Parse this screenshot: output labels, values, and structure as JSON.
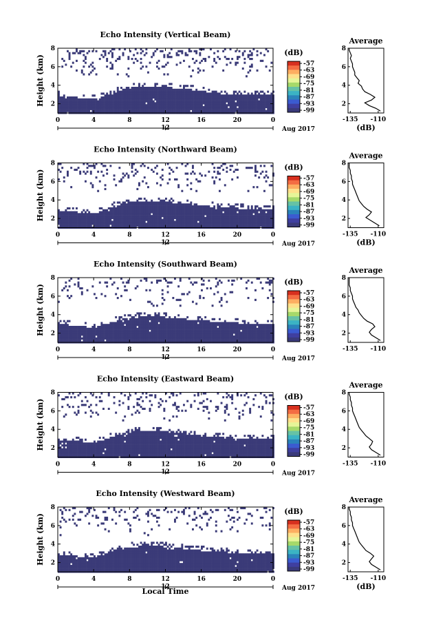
{
  "page": {
    "background": "#ffffff",
    "xlabel": "Local Time",
    "date_label": "Aug 2017",
    "marker_label": "12"
  },
  "colorbar": {
    "title": "(dB)",
    "labels": [
      "-57",
      "-63",
      "-69",
      "-75",
      "-81",
      "-87",
      "-93",
      "-99"
    ],
    "colors": [
      "#d7301f",
      "#f46d43",
      "#fdae61",
      "#fee08b",
      "#e6f598",
      "#a6d96a",
      "#66c2a5",
      "#3bb3c4",
      "#2b83ba",
      "#3b5bd0",
      "#3f3fa0",
      "#3a3a7a"
    ],
    "dominant_color": "#3b3b78"
  },
  "chart_data": [
    {
      "type": "heatmap",
      "title": "Echo Intensity (Vertical Beam)",
      "ylabel": "Height (km)",
      "xticks": [
        "0",
        "4",
        "8",
        "12",
        "16",
        "20",
        "0"
      ],
      "yticks": [
        "2",
        "4",
        "6",
        "8"
      ],
      "xlim": [
        0,
        24
      ],
      "ylim": [
        1,
        8
      ],
      "layer_top_km": [
        [
          0,
          3.0
        ],
        [
          2,
          2.8
        ],
        [
          4,
          2.6
        ],
        [
          6,
          3.2
        ],
        [
          7,
          3.6
        ],
        [
          9,
          4.0
        ],
        [
          12,
          3.9
        ],
        [
          15,
          3.6
        ],
        [
          18,
          3.2
        ],
        [
          21,
          3.0
        ],
        [
          24,
          3.1
        ]
      ],
      "noise_density": 0.2,
      "average": {
        "title": "Average",
        "xlabel": "(dB)",
        "xticks": [
          "-135",
          "-110"
        ],
        "yticks": [
          "2",
          "4",
          "6",
          "8"
        ],
        "xlim": [
          -137,
          -105
        ],
        "height_km": [
          1.2,
          1.5,
          1.8,
          2.1,
          2.4,
          2.7,
          3.0,
          3.3,
          3.6,
          3.9,
          4.2,
          4.5,
          4.8,
          5.1,
          5.4,
          5.7,
          6.0,
          6.3,
          6.6,
          6.9,
          7.2,
          7.5,
          7.8,
          8.0
        ],
        "db": [
          -108,
          -112,
          -118,
          -122,
          -116,
          -113,
          -117,
          -122,
          -124,
          -125,
          -128,
          -127,
          -129,
          -131,
          -131,
          -132,
          -133,
          -133,
          -134,
          -135,
          -134,
          -135,
          -136,
          -136
        ]
      }
    },
    {
      "type": "heatmap",
      "title": "Echo Intensity (Northward Beam)",
      "ylabel": "Height (km)",
      "xticks": [
        "0",
        "4",
        "8",
        "12",
        "16",
        "20",
        "0"
      ],
      "yticks": [
        "2",
        "4",
        "6",
        "8"
      ],
      "xlim": [
        0,
        24
      ],
      "ylim": [
        1,
        8
      ],
      "layer_top_km": [
        [
          0,
          3.0
        ],
        [
          2,
          2.8
        ],
        [
          4,
          2.6
        ],
        [
          6,
          3.4
        ],
        [
          8,
          3.9
        ],
        [
          11,
          4.0
        ],
        [
          14,
          3.7
        ],
        [
          17,
          3.4
        ],
        [
          20,
          3.2
        ],
        [
          24,
          3.1
        ]
      ],
      "noise_density": 0.16,
      "average": {
        "title": "Average",
        "xlabel": "(dB)",
        "xticks": [
          "-135",
          "-110"
        ],
        "yticks": [
          "2",
          "4",
          "6",
          "8"
        ],
        "xlim": [
          -137,
          -105
        ],
        "height_km": [
          1.2,
          1.5,
          1.8,
          2.1,
          2.4,
          2.7,
          3.0,
          3.3,
          3.6,
          3.9,
          4.2,
          4.5,
          4.8,
          5.1,
          5.4,
          5.7,
          6.0,
          6.3,
          6.6,
          6.9,
          7.2,
          7.5,
          7.8,
          8.0
        ],
        "db": [
          -109,
          -113,
          -117,
          -121,
          -118,
          -116,
          -120,
          -123,
          -125,
          -127,
          -128,
          -129,
          -130,
          -131,
          -132,
          -133,
          -133,
          -134,
          -134,
          -135,
          -135,
          -136,
          -136,
          -136
        ]
      }
    },
    {
      "type": "heatmap",
      "title": "Echo Intensity (Southward Beam)",
      "ylabel": "Height (km)",
      "xticks": [
        "0",
        "4",
        "8",
        "12",
        "16",
        "20",
        "0"
      ],
      "yticks": [
        "2",
        "4",
        "6",
        "8"
      ],
      "xlim": [
        0,
        24
      ],
      "ylim": [
        1,
        8
      ],
      "layer_top_km": [
        [
          0,
          3.1
        ],
        [
          2,
          2.9
        ],
        [
          4,
          2.7
        ],
        [
          6,
          3.3
        ],
        [
          8,
          3.8
        ],
        [
          11,
          3.9
        ],
        [
          14,
          3.6
        ],
        [
          17,
          3.4
        ],
        [
          20,
          3.2
        ],
        [
          24,
          3.0
        ]
      ],
      "noise_density": 0.15,
      "average": {
        "title": "Average",
        "xlabel": "",
        "xticks": [
          "-135",
          "-110"
        ],
        "yticks": [
          "2",
          "4",
          "6",
          "8"
        ],
        "xlim": [
          -137,
          -105
        ],
        "height_km": [
          1.2,
          1.5,
          1.8,
          2.1,
          2.4,
          2.7,
          3.0,
          3.3,
          3.6,
          3.9,
          4.2,
          4.5,
          4.8,
          5.1,
          5.4,
          5.7,
          6.0,
          6.3,
          6.6,
          6.9,
          7.2,
          7.5,
          7.8,
          8.0
        ],
        "db": [
          -108,
          -112,
          -116,
          -118,
          -116,
          -113,
          -115,
          -120,
          -123,
          -125,
          -127,
          -128,
          -130,
          -131,
          -132,
          -133,
          -133,
          -134,
          -135,
          -135,
          -136,
          -136,
          -136,
          -136
        ]
      }
    },
    {
      "type": "heatmap",
      "title": "Echo Intensity (Eastward Beam)",
      "ylabel": "Height (km)",
      "xticks": [
        "0",
        "4",
        "8",
        "12",
        "16",
        "20",
        "0"
      ],
      "yticks": [
        "2",
        "4",
        "6",
        "8"
      ],
      "xlim": [
        0,
        24
      ],
      "ylim": [
        1,
        8
      ],
      "layer_top_km": [
        [
          0,
          3.0
        ],
        [
          2,
          2.8
        ],
        [
          4,
          2.6
        ],
        [
          6,
          3.3
        ],
        [
          8,
          3.9
        ],
        [
          11,
          4.0
        ],
        [
          14,
          3.6
        ],
        [
          17,
          3.3
        ],
        [
          20,
          3.1
        ],
        [
          24,
          3.0
        ]
      ],
      "noise_density": 0.18,
      "average": {
        "title": "Average",
        "xlabel": "",
        "xticks": [
          "-135",
          "-110"
        ],
        "yticks": [
          "2",
          "4",
          "6",
          "8"
        ],
        "xlim": [
          -137,
          -105
        ],
        "height_km": [
          1.2,
          1.5,
          1.8,
          2.1,
          2.4,
          2.7,
          3.0,
          3.3,
          3.6,
          3.9,
          4.2,
          4.5,
          4.8,
          5.1,
          5.4,
          5.7,
          6.0,
          6.3,
          6.6,
          6.9,
          7.2,
          7.5,
          7.8,
          8.0
        ],
        "db": [
          -108,
          -112,
          -116,
          -118,
          -116,
          -115,
          -118,
          -121,
          -123,
          -125,
          -127,
          -128,
          -129,
          -130,
          -131,
          -132,
          -133,
          -133,
          -134,
          -134,
          -135,
          -135,
          -136,
          -136
        ]
      }
    },
    {
      "type": "heatmap",
      "title": "Echo Intensity (Westward Beam)",
      "ylabel": "Height (km)",
      "xticks": [
        "0",
        "4",
        "8",
        "12",
        "16",
        "20",
        "0"
      ],
      "yticks": [
        "2",
        "4",
        "6",
        "8"
      ],
      "xlim": [
        0,
        24
      ],
      "ylim": [
        1,
        8
      ],
      "layer_top_km": [
        [
          0,
          3.0
        ],
        [
          2,
          2.8
        ],
        [
          4,
          2.6
        ],
        [
          6,
          3.3
        ],
        [
          8,
          3.8
        ],
        [
          11,
          3.9
        ],
        [
          14,
          3.6
        ],
        [
          17,
          3.3
        ],
        [
          20,
          3.1
        ],
        [
          24,
          3.0
        ]
      ],
      "noise_density": 0.17,
      "average": {
        "title": "Average",
        "xlabel": "(dB)",
        "xticks": [
          "-135",
          "-110"
        ],
        "yticks": [
          "2",
          "4",
          "6",
          "8"
        ],
        "xlim": [
          -137,
          -105
        ],
        "height_km": [
          1.2,
          1.5,
          1.8,
          2.1,
          2.4,
          2.7,
          3.0,
          3.3,
          3.6,
          3.9,
          4.2,
          4.5,
          4.8,
          5.1,
          5.4,
          5.7,
          6.0,
          6.3,
          6.6,
          6.9,
          7.2,
          7.5,
          7.8,
          8.0
        ],
        "db": [
          -108,
          -112,
          -116,
          -118,
          -116,
          -114,
          -117,
          -121,
          -123,
          -125,
          -127,
          -128,
          -129,
          -130,
          -131,
          -132,
          -133,
          -133,
          -134,
          -134,
          -135,
          -135,
          -136,
          -136
        ]
      }
    }
  ]
}
